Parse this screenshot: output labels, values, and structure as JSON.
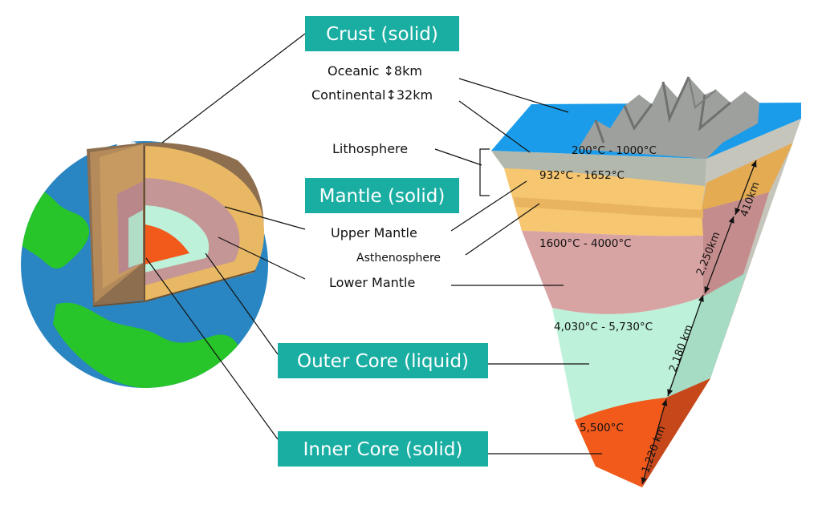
{
  "colors": {
    "ocean": "#2a86c2",
    "land": "#27c42a",
    "crust": "#b3b8ad",
    "upper_mantle": "#f6c670",
    "lower_mantle": "#d7a3a3",
    "outer_core": "#bdf1d9",
    "inner_core": "#f25a1c",
    "label_bg": "#1aaea3",
    "surface_water": "#1b9cea",
    "mountains": "#9ea09d"
  },
  "labels": {
    "crust": "Crust (solid)",
    "mantle": "Mantle (solid)",
    "outer_core": "Outer Core (liquid)",
    "inner_core": "Inner Core (solid)",
    "oceanic": "Oceanic ↕8km",
    "continental": "Continental↕32km",
    "lithosphere": "Lithosphere",
    "upper_mantle": "Upper Mantle",
    "asthenosphere": "Asthenosphere",
    "lower_mantle": "Lower Mantle"
  },
  "temperatures": {
    "crust": "200°C - 1000°C",
    "upper_mantle": "932°C - 1652°C",
    "lower_mantle": "1600°C - 4000°C",
    "outer_core": "4,030°C - 5,730°C",
    "inner_core": "5,500°C"
  },
  "thickness": {
    "upper_mantle": "410km",
    "lower_mantle": "2,250km",
    "outer_core": "2,180 km",
    "inner_core": "1,220 km"
  },
  "icons": [
    "earth-cutaway-globe-icon",
    "earth-layers-wedge-icon",
    "double-arrow-icon",
    "mountain-range-icon"
  ]
}
